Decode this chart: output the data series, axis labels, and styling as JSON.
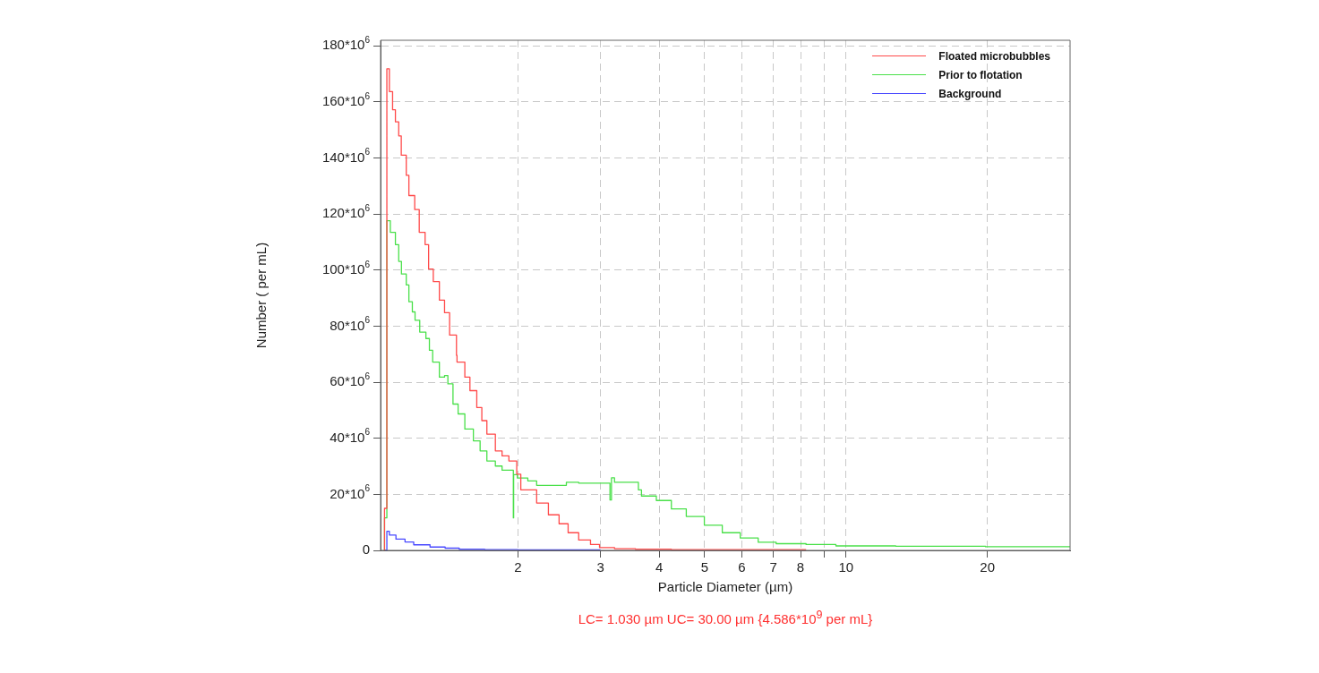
{
  "chart_data": {
    "type": "step",
    "xlabel": "Particle Diameter (µm)",
    "ylabel": "Number ( per mL)",
    "annotations": [
      "LC= 1.030 µm   UC= 30.00 µm {4.586*10$^{9}$ per mL}"
    ],
    "log": "x",
    "grid": true,
    "legend": "top right",
    "marker": "none",
    "line_style": "solid",
    "xlim": [
      1.02,
      30
    ],
    "xticks": [
      2,
      3,
      4,
      5,
      6,
      7,
      8,
      {
        "value": 9,
        "label": null
      },
      10,
      20
    ],
    "ylim": [
      0,
      182000000
    ],
    "yticks": [
      {
        "value": 0,
        "label": "0"
      },
      {
        "value": 20000000,
        "label": "20*10$^{6}$"
      },
      {
        "value": 40000000,
        "label": "40*10$^{6}$"
      },
      {
        "value": 60000000,
        "label": "60*10$^{6}$"
      },
      {
        "value": 80000000,
        "label": "80*10$^{6}$"
      },
      {
        "value": 100000000,
        "label": "100*10$^{6}$"
      },
      {
        "value": 120000000,
        "label": "120*10$^{6}$"
      },
      {
        "value": 140000000,
        "label": "140*10$^{6}$"
      },
      {
        "value": 160000000,
        "label": "160*10$^{6}$"
      },
      {
        "value": 180000000,
        "label": "180*10$^{6}$"
      }
    ],
    "series": [
      {
        "name": "Floated microbubbles",
        "color": "#ff4a4a",
        "x": [
          1.04,
          1.052,
          1.065,
          1.082,
          1.097,
          1.115,
          1.129,
          1.157,
          1.172,
          1.206,
          1.233,
          1.269,
          1.291,
          1.321,
          1.361,
          1.396,
          1.431,
          1.48,
          1.484,
          1.542,
          1.581,
          1.635,
          1.676,
          1.718,
          1.791,
          1.851,
          1.914,
          1.989,
          2.029,
          2.193,
          2.323,
          2.448,
          2.559,
          2.695,
          2.856,
          2.985,
          3.213,
          3.559,
          4.246,
          8.22
        ],
        "values": [
          0,
          15000000,
          171800000,
          163700000,
          157200000,
          152900000,
          147900000,
          141000000,
          133800000,
          126600000,
          121600000,
          113500000,
          109100000,
          100400000,
          95900000,
          89300000,
          84800000,
          76800000,
          69600000,
          67200000,
          61800000,
          57000000,
          51000000,
          46300000,
          41500000,
          35500000,
          33700000,
          31900000,
          27200000,
          21600000,
          16900000,
          12700000,
          9500000,
          6300000,
          3700000,
          2100000,
          1000000,
          600000,
          400000,
          300000
        ]
      },
      {
        "name": "Prior to flotation",
        "color": "#4ae04a",
        "x": [
          1.04,
          1.052,
          1.07,
          1.097,
          1.115,
          1.13,
          1.157,
          1.172,
          1.192,
          1.208,
          1.236,
          1.274,
          1.296,
          1.317,
          1.361,
          1.396,
          1.419,
          1.455,
          1.492,
          1.542,
          1.608,
          1.662,
          1.718,
          1.791,
          1.851,
          1.956,
          1.959,
          1.995,
          2.1,
          2.193,
          2.326,
          2.537,
          2.695,
          3.142,
          3.165,
          3.213,
          3.357,
          3.612,
          3.667,
          3.944,
          4.246,
          4.568,
          4.991,
          5.45,
          5.952,
          6.5,
          7.098,
          8.22,
          9.515,
          12.76,
          19.82,
          30
        ],
        "values": [
          0,
          11600000,
          117600000,
          113500000,
          109100000,
          103100000,
          98600000,
          94700000,
          88700000,
          85100000,
          82100000,
          77900000,
          75600000,
          71400000,
          67200000,
          61800000,
          62400000,
          59400000,
          52200000,
          48700000,
          43300000,
          39100000,
          35500000,
          31900000,
          30100000,
          28600000,
          11600000,
          27000000,
          25800000,
          24800000,
          23200000,
          23200000,
          24300000,
          24000000,
          18000000,
          25900000,
          24300000,
          24300000,
          21600000,
          19400000,
          17800000,
          14800000,
          12100000,
          9000000,
          6300000,
          4400000,
          2900000,
          2400000,
          2100000,
          1600000,
          1500000,
          1300000
        ]
      },
      {
        "name": "Background",
        "color": "#4a4aff",
        "x": [
          1.04,
          1.052,
          1.065,
          1.1,
          1.15,
          1.2,
          1.3,
          1.4,
          1.5,
          1.7,
          2,
          3
        ],
        "values": [
          0,
          0,
          6800000,
          5500000,
          4000000,
          3000000,
          2000000,
          1200000,
          800000,
          400000,
          300000,
          200000
        ]
      }
    ]
  }
}
